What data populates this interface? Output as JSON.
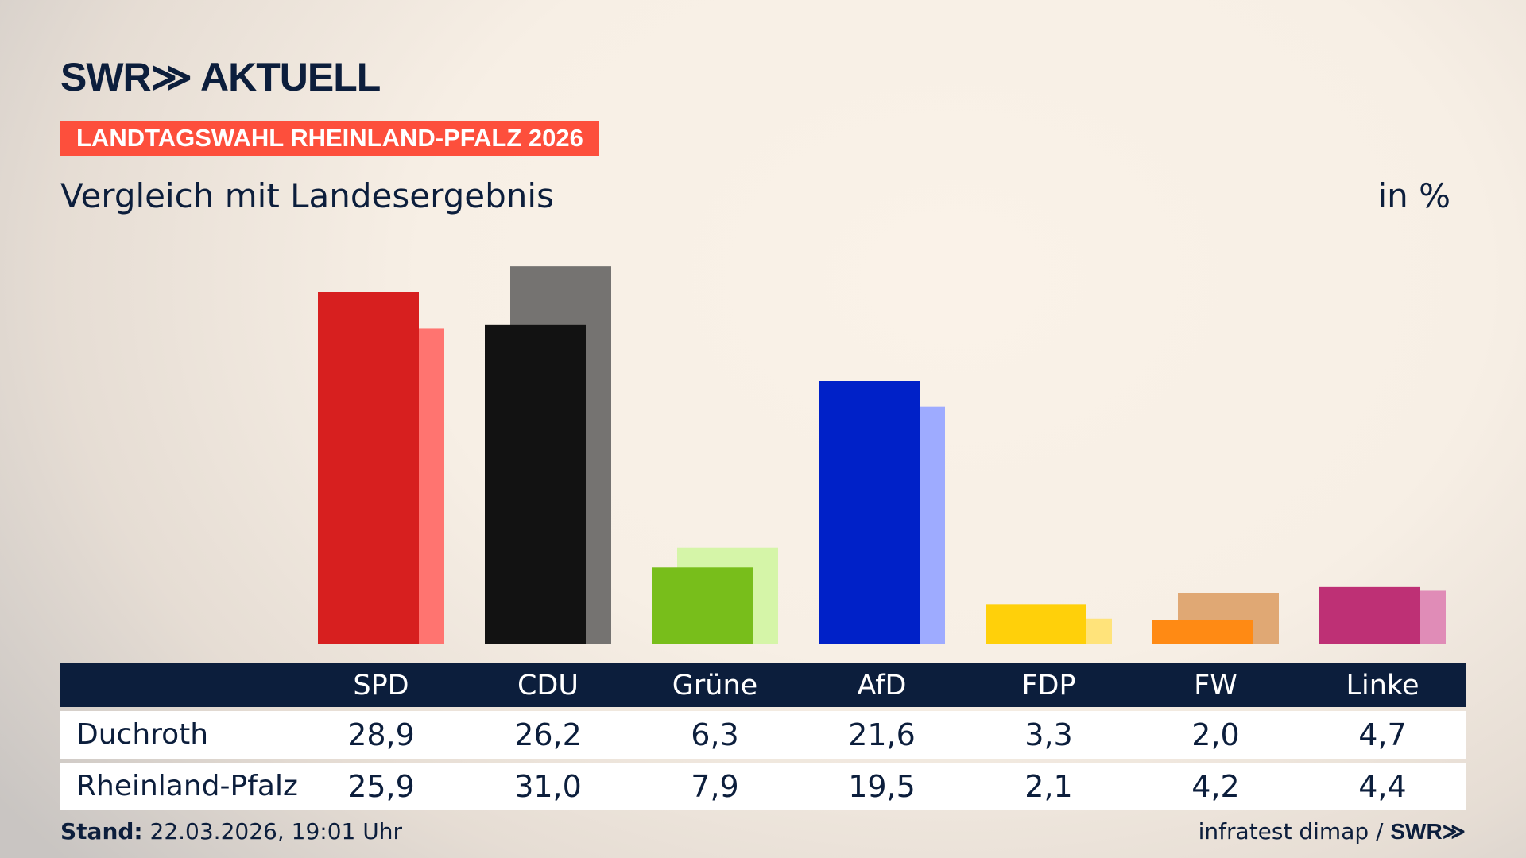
{
  "header": {
    "logo": "SWR≫ AKTUELL",
    "banner": "LANDTAGSWAHL RHEINLAND-PFALZ 2026",
    "subtitle": "Vergleich mit Landesergebnis",
    "unit": "in %"
  },
  "chart_data": {
    "type": "bar",
    "categories": [
      "SPD",
      "CDU",
      "Grüne",
      "AfD",
      "FDP",
      "FW",
      "Linke"
    ],
    "series": [
      {
        "name": "Duchroth",
        "values": [
          28.9,
          26.2,
          6.3,
          21.6,
          3.3,
          2.0,
          4.7
        ],
        "labels": [
          "28,9",
          "26,2",
          "6,3",
          "21,6",
          "3,3",
          "2,0",
          "4,7"
        ],
        "colors": [
          "#d71f1f",
          "#121212",
          "#78be1b",
          "#0021c8",
          "#ffd00a",
          "#ff8a14",
          "#be3075"
        ]
      },
      {
        "name": "Rheinland-Pfalz",
        "values": [
          25.9,
          31.0,
          7.9,
          19.5,
          2.1,
          4.2,
          4.4
        ],
        "labels": [
          "25,9",
          "31,0",
          "7,9",
          "19,5",
          "2,1",
          "4,2",
          "4,4"
        ],
        "colors": [
          "#ff7470",
          "#757371",
          "#d5f5a8",
          "#9eabff",
          "#ffe37a",
          "#e0a874",
          "#e08cb7"
        ]
      }
    ],
    "ylim": [
      0,
      31
    ],
    "grid": false
  },
  "footer": {
    "stand_label": "Stand:",
    "stand_value": " 22.03.2026, 19:01 Uhr",
    "source": "infratest dimap / ",
    "source_logo": "SWR≫"
  },
  "colors": {
    "navy": "#0c1e3c",
    "banner": "#fd4f3c"
  }
}
